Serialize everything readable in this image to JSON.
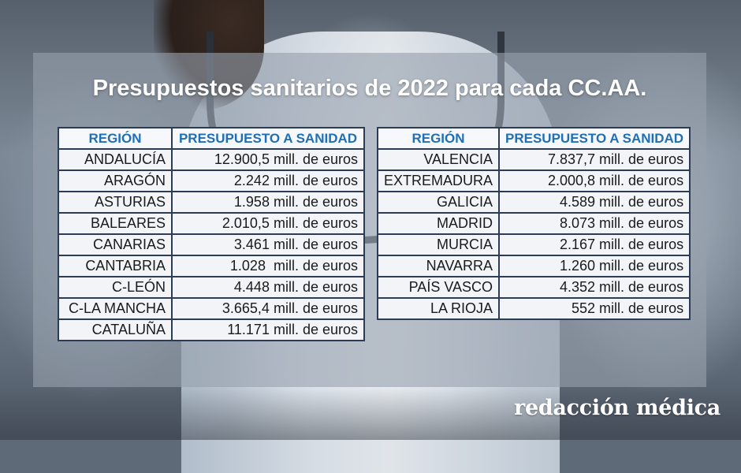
{
  "title": "Presupuestos sanitarios de 2022 para cada CC.AA.",
  "columns": {
    "region": "REGIÓN",
    "budget": "PRESUPUESTO A SANIDAD"
  },
  "left_table": [
    {
      "region": "ANDALUCÍA",
      "amount": "12.900,5 mill. de euros"
    },
    {
      "region": "ARAGÓN",
      "amount": "2.242 mill. de euros"
    },
    {
      "region": "ASTURIAS",
      "amount": "1.958 mill. de euros"
    },
    {
      "region": "BALEARES",
      "amount": "2.010,5 mill. de euros"
    },
    {
      "region": "CANARIAS",
      "amount": "3.461 mill. de euros"
    },
    {
      "region": "CANTABRIA",
      "amount": "1.028  mill. de euros"
    },
    {
      "region": "C-LEÓN",
      "amount": "4.448 mill. de euros"
    },
    {
      "region": "C-LA MANCHA",
      "amount": "3.665,4 mill. de euros"
    },
    {
      "region": "CATALUÑA",
      "amount": "11.171 mill. de euros"
    }
  ],
  "right_table": [
    {
      "region": "VALENCIA",
      "amount": "7.837,7 mill. de euros"
    },
    {
      "region": "EXTREMADURA",
      "amount": "2.000,8 mill. de euros"
    },
    {
      "region": "GALICIA",
      "amount": "4.589 mill. de euros"
    },
    {
      "region": "MADRID",
      "amount": "8.073 mill. de euros"
    },
    {
      "region": "MURCIA",
      "amount": "2.167 mill. de euros"
    },
    {
      "region": "NAVARRA",
      "amount": "1.260 mill. de euros"
    },
    {
      "region": "PAÍS VASCO",
      "amount": "4.352 mill. de euros"
    },
    {
      "region": "LA RIOJA",
      "amount": "552 mill. de euros"
    }
  ],
  "logo_text": "redacción médica",
  "colors": {
    "header_text": "#1f6fb4",
    "border": "#2d3c55",
    "title": "#ffffff"
  }
}
